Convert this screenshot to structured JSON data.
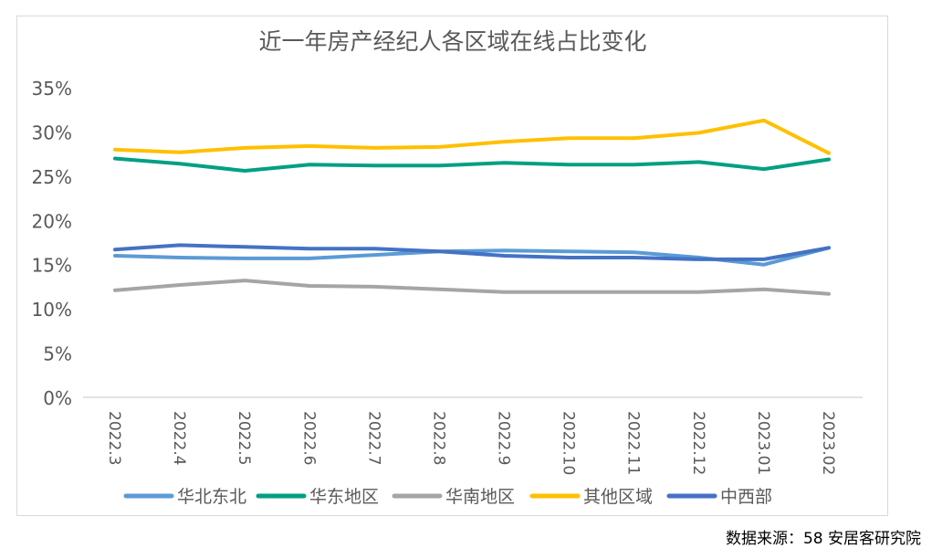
{
  "chart_data": {
    "type": "line",
    "title": "近一年房产经纪人各区域在线占比变化",
    "xlabel": "",
    "ylabel": "",
    "ylim": [
      0,
      35
    ],
    "y_ticks": [
      0,
      5,
      10,
      15,
      20,
      25,
      30,
      35
    ],
    "y_tick_labels": [
      "0%",
      "5%",
      "10%",
      "15%",
      "20%",
      "25%",
      "30%",
      "35%"
    ],
    "grid": false,
    "legend_position": "bottom",
    "categories": [
      "2022.3",
      "2022.4",
      "2022.5",
      "2022.6",
      "2022.7",
      "2022.8",
      "2022.9",
      "2022.10",
      "2022.11",
      "2022.12",
      "2023.01",
      "2023.02"
    ],
    "series": [
      {
        "name": "华北东北",
        "color": "#5b9bd5",
        "values": [
          16.0,
          15.8,
          15.7,
          15.7,
          16.1,
          16.5,
          16.6,
          16.5,
          16.4,
          15.8,
          15.0,
          16.9
        ]
      },
      {
        "name": "华东地区",
        "color": "#00a082",
        "values": [
          27.0,
          26.4,
          25.6,
          26.3,
          26.2,
          26.2,
          26.5,
          26.3,
          26.3,
          26.6,
          25.8,
          26.9
        ]
      },
      {
        "name": "华南地区",
        "color": "#a5a5a5",
        "values": [
          12.1,
          12.7,
          13.2,
          12.6,
          12.5,
          12.2,
          11.9,
          11.9,
          11.9,
          11.9,
          12.2,
          11.7
        ]
      },
      {
        "name": "其他区域",
        "color": "#ffc000",
        "values": [
          28.0,
          27.7,
          28.2,
          28.4,
          28.2,
          28.3,
          28.9,
          29.3,
          29.3,
          29.9,
          31.3,
          27.6
        ]
      },
      {
        "name": "中西部",
        "color": "#4472c4",
        "values": [
          16.7,
          17.2,
          17.0,
          16.8,
          16.8,
          16.5,
          16.0,
          15.8,
          15.8,
          15.6,
          15.6,
          16.9
        ]
      }
    ]
  },
  "source_note": "数据来源：58 安居客研究院"
}
